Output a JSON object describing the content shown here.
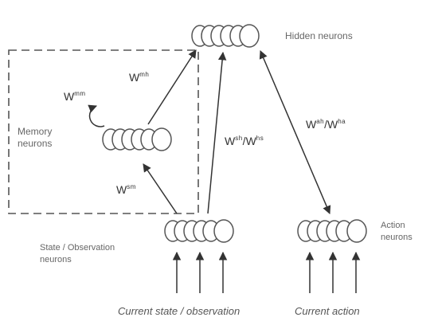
{
  "layers": {
    "hidden": "Hidden neurons",
    "memory_line1": "Memory",
    "memory_line2": "neurons",
    "state_line1": "State / Observation",
    "state_line2": "neurons",
    "action_line1": "Action",
    "action_line2": "neurons"
  },
  "weights": {
    "recurrent": {
      "base": "W",
      "sup": "mm"
    },
    "state_to_memory": {
      "base": "W",
      "sup": "sm"
    },
    "memory_to_hidden": {
      "base": "W",
      "sup": "mh"
    },
    "state_to_hidden": {
      "base": "W",
      "sup": "sh",
      "sep": "/",
      "base2": "W",
      "sup2": "hs"
    },
    "action_hidden": {
      "base": "W",
      "sup": "ah",
      "sep": "/",
      "base2": "W",
      "sup2": "ha"
    }
  },
  "inputs": {
    "state": "Current state / observation",
    "action": "Current action"
  },
  "colors": {
    "ink": "#333333",
    "line": "#444444",
    "label": "#666666"
  }
}
